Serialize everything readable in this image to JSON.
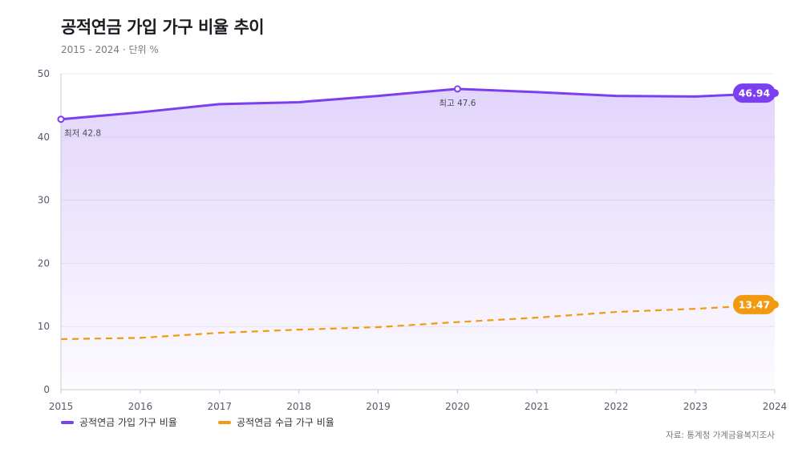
{
  "title": "공적연금 가입 가구 비율 추이",
  "subtitle": "2015 - 2024 · 단위 %",
  "source": "자료: 통계청 가계금융복지조사",
  "colors": {
    "series1": "#7b3ff0",
    "series2": "#f29a0f",
    "grid": "#ececf1",
    "axis": "#555a66"
  },
  "chart_data": {
    "type": "line",
    "x": [
      2015,
      2016,
      2017,
      2018,
      2019,
      2020,
      2021,
      2022,
      2023,
      2024
    ],
    "ylim": [
      0,
      50
    ],
    "yticks": [
      0,
      10,
      20,
      30,
      40,
      50
    ],
    "grid": true,
    "legend_position": "bottom-left",
    "series": [
      {
        "name": "공적연금 가입 가구 비율",
        "style": "solid-area",
        "values": [
          42.8,
          43.9,
          45.2,
          45.5,
          46.5,
          47.6,
          47.1,
          46.5,
          46.4,
          46.94
        ],
        "end_label": "46.94"
      },
      {
        "name": "공적연금 수급 가구 비율",
        "style": "dashed",
        "values": [
          8.0,
          8.2,
          9.0,
          9.5,
          9.9,
          10.7,
          11.4,
          12.3,
          12.8,
          13.47
        ],
        "end_label": "13.47"
      }
    ],
    "annotations": [
      {
        "text": "최저 42.8",
        "x": 2015,
        "y": 42.8,
        "placement": "below"
      },
      {
        "text": "최고 47.6",
        "x": 2020,
        "y": 47.6,
        "placement": "below"
      }
    ]
  }
}
